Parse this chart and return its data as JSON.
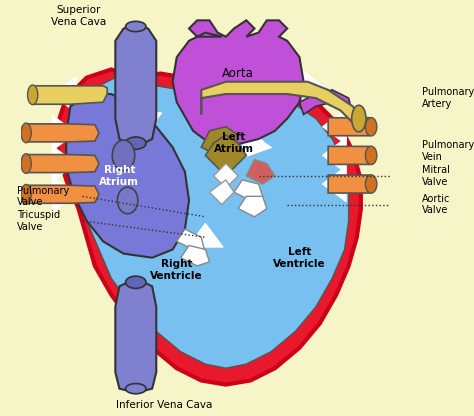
{
  "background_color": "#F5F5C8",
  "colors": {
    "red": "#E8192C",
    "red_dark": "#CC0018",
    "blue_light": "#78C0F0",
    "purple_ra": "#7878D8",
    "purple_aorta": "#C050D8",
    "purple_svc": "#8080D0",
    "yellow": "#E8D060",
    "yellow_dark": "#C8A830",
    "orange": "#F09040",
    "orange_dark": "#D07020",
    "white": "#FFFFFF",
    "outline": "#222222",
    "tan_valve": "#A08828",
    "pink_valve": "#E07878",
    "blue_oval": "#6868B8"
  },
  "labels": {
    "superior_vena_cava": "Superior\nVena Cava",
    "aorta": "Aorta",
    "pulmonary_artery": "Pulmonary\nArtery",
    "pulmonary_vein": "Pulmonary\nVein",
    "right_atrium": "Right\nAtrium",
    "left_atrium": "Left\nAtrium",
    "right_ventricle": "Right\nVentricle",
    "left_ventricle": "Left\nVentricle",
    "mitral_valve": "Mitral\nValve",
    "aortic_valve": "Aortic\nValve",
    "pulmonary_valve": "Pulmonary\nValve",
    "tricuspid_valve": "Tricuspid\nValve",
    "inferior_vena_cava": "Inferior Vena Cava"
  }
}
